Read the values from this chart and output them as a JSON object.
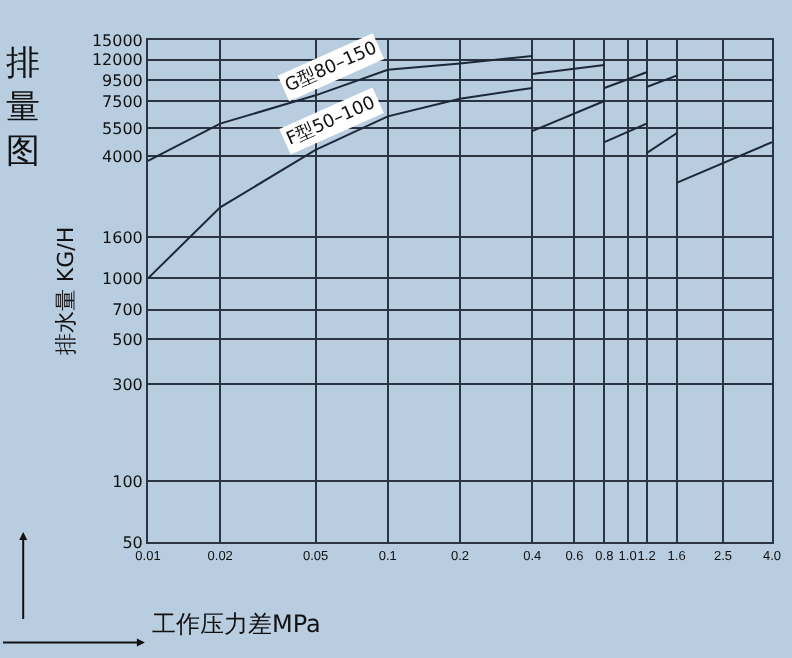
{
  "chart_data": {
    "type": "line",
    "title": "排量图",
    "xlabel": "工作压力差MPa",
    "ylabel": "排水量 KG/H",
    "log": "xy",
    "grid": true,
    "legend": false,
    "marker": "none",
    "line_style": "solid",
    "xlim": [
      0.01,
      4.0
    ],
    "xticks": [
      0.01,
      0.02,
      0.05,
      0.1,
      0.2,
      0.4,
      0.6,
      0.8,
      {
        "value": 1.0,
        "label": "1.0"
      },
      1.2,
      1.6,
      2.5,
      {
        "value": 4.0,
        "label": "4.0"
      }
    ],
    "ylim": [
      50,
      15000
    ],
    "yticks": [
      50,
      100,
      300,
      500,
      700,
      1000,
      1600,
      4000,
      5500,
      7500,
      9500,
      12000,
      15000
    ],
    "series": [
      {
        "name": "G型80–150",
        "color": "#1c2838",
        "x": [
          0.01,
          0.02,
          0.05,
          0.1,
          0.2,
          0.4
        ],
        "values": [
          3800,
          5800,
          8000,
          10700,
          11500,
          12500
        ]
      },
      {
        "color": "#1c2838",
        "x": [
          0.4,
          0.8
        ],
        "values": [
          10200,
          11300
        ]
      },
      {
        "color": "#1c2838",
        "x": [
          0.8,
          1.2
        ],
        "values": [
          8700,
          10400
        ]
      },
      {
        "color": "#1c2838",
        "x": [
          1.2,
          1.6
        ],
        "values": [
          8800,
          10000
        ]
      },
      {
        "name": "F型50–100",
        "color": "#1c2838",
        "x": [
          0.01,
          0.02,
          0.05,
          0.1,
          0.2,
          0.4
        ],
        "values": [
          1000,
          2240,
          4300,
          6300,
          7700,
          8700
        ]
      },
      {
        "color": "#1c2838",
        "x": [
          0.4,
          0.8
        ],
        "values": [
          5330,
          7500
        ]
      },
      {
        "color": "#1c2838",
        "x": [
          0.8,
          1.2
        ],
        "values": [
          4700,
          5800
        ]
      },
      {
        "color": "#1c2838",
        "x": [
          1.2,
          1.6
        ],
        "values": [
          4150,
          5200
        ]
      },
      {
        "color": "#1c2838",
        "x": [
          1.6,
          4.0
        ],
        "values": [
          2960,
          4700
        ]
      }
    ]
  }
}
